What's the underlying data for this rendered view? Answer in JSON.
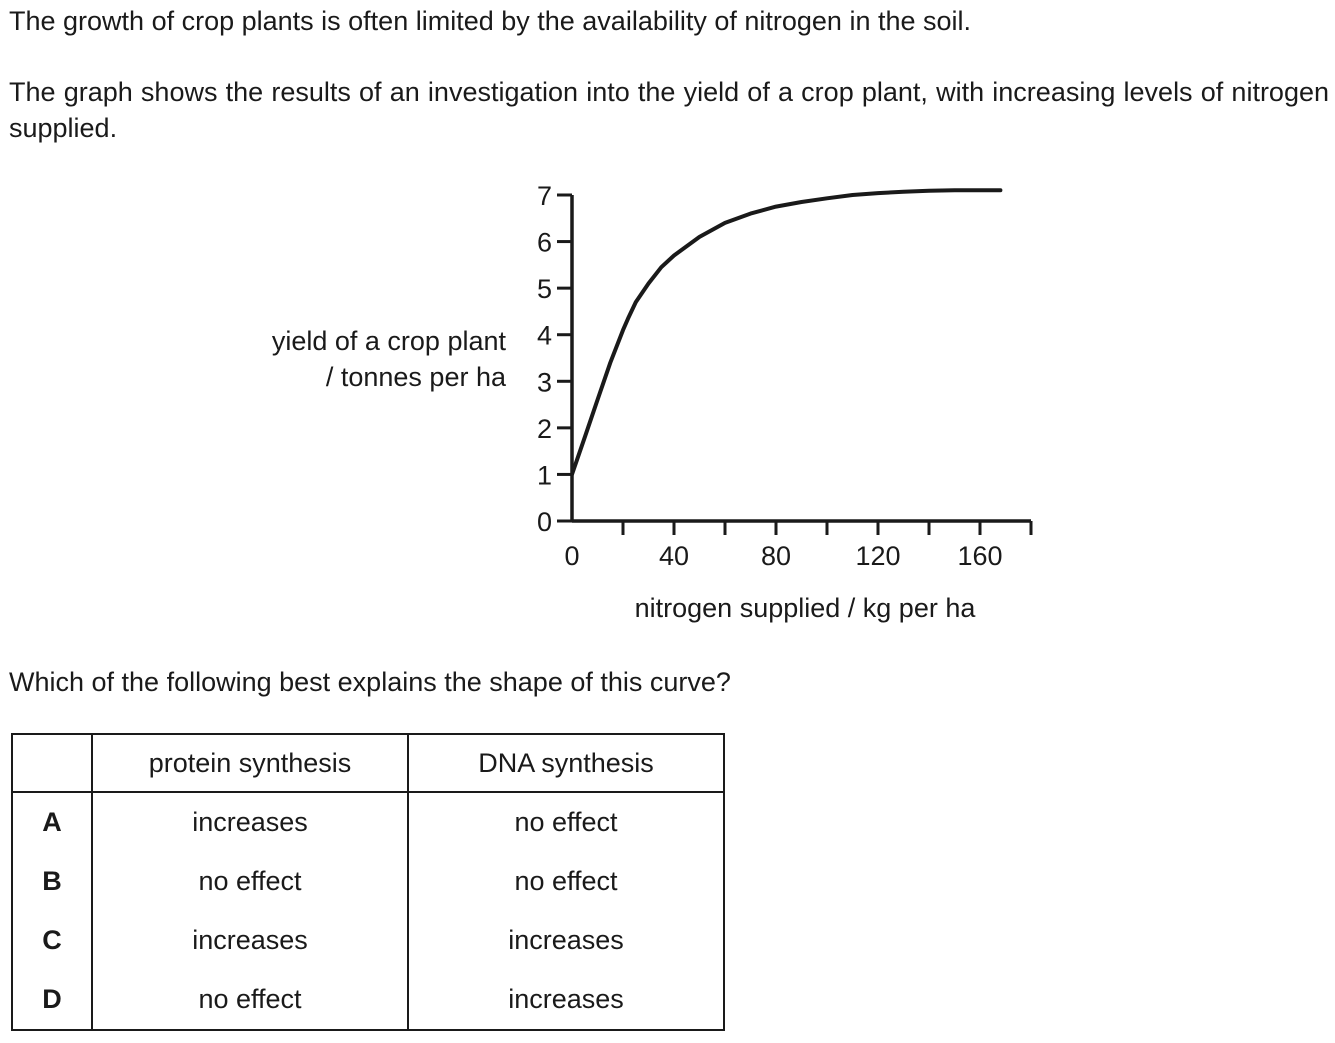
{
  "intro": {
    "line1": "The growth of crop plants is often limited by the availability of nitrogen in the soil.",
    "line2": "The graph shows the results of an investigation into the yield of a crop plant, with increasing levels of nitrogen supplied."
  },
  "chart_data": {
    "type": "line",
    "ylabel_line1": "yield of a crop plant",
    "ylabel_line2": "/ tonnes per ha",
    "xlabel": "nitrogen supplied / kg per ha",
    "xlim": [
      0,
      180
    ],
    "ylim": [
      0,
      7
    ],
    "x_ticks": [
      0,
      20,
      40,
      60,
      80,
      100,
      120,
      140,
      160,
      180
    ],
    "x_tick_labels": [
      "0",
      "40",
      "80",
      "120",
      "160"
    ],
    "x_tick_label_values": [
      0,
      40,
      80,
      120,
      160
    ],
    "y_ticks": [
      0,
      1,
      2,
      3,
      4,
      5,
      6,
      7
    ],
    "y_tick_labels": [
      "0",
      "1",
      "2",
      "3",
      "4",
      "5",
      "6",
      "7"
    ],
    "grid": false,
    "series": [
      {
        "x": [
          0,
          5,
          10,
          15,
          20,
          22,
          25,
          30,
          35,
          40,
          50,
          60,
          70,
          80,
          90,
          100,
          110,
          120,
          130,
          140,
          150,
          160,
          168
        ],
        "y": [
          1.0,
          1.8,
          2.6,
          3.4,
          4.1,
          4.35,
          4.7,
          5.1,
          5.45,
          5.7,
          6.1,
          6.4,
          6.6,
          6.75,
          6.85,
          6.93,
          7.0,
          7.04,
          7.07,
          7.09,
          7.1,
          7.1,
          7.1
        ]
      }
    ]
  },
  "question": "Which of the following best explains the shape of this curve?",
  "table": {
    "headers": [
      "",
      "protein synthesis",
      "DNA synthesis"
    ],
    "rows": [
      {
        "letter": "A",
        "protein": "increases",
        "dna": "no effect"
      },
      {
        "letter": "B",
        "protein": "no effect",
        "dna": "no effect"
      },
      {
        "letter": "C",
        "protein": "increases",
        "dna": "increases"
      },
      {
        "letter": "D",
        "protein": "no effect",
        "dna": "increases"
      }
    ]
  }
}
